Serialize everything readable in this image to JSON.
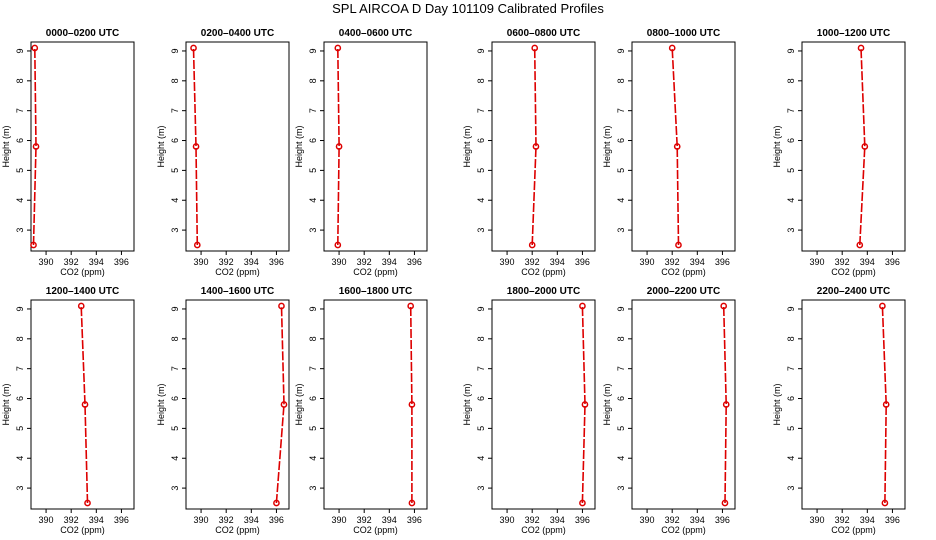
{
  "figure": {
    "title": "SPL AIRCOA D  Day 101109  Calibrated Profiles",
    "series_color": "#dd0000"
  },
  "chart_data": [
    {
      "type": "line",
      "title": "0000–0200 UTC",
      "xlabel": "CO2 (ppm)",
      "ylabel": "Height (m)",
      "xlim": [
        388.8,
        397.0
      ],
      "ylim": [
        2.3,
        9.3
      ],
      "xticks": [
        390,
        392,
        394,
        396
      ],
      "yticks": [
        3,
        4,
        5,
        6,
        7,
        8,
        9
      ],
      "x": [
        389.0,
        389.2,
        389.1
      ],
      "y": [
        2.5,
        5.8,
        9.1
      ]
    },
    {
      "type": "line",
      "title": "0200–0400 UTC",
      "xlabel": "CO2 (ppm)",
      "ylabel": "Height (m)",
      "xlim": [
        388.8,
        397.0
      ],
      "ylim": [
        2.3,
        9.3
      ],
      "xticks": [
        390,
        392,
        394,
        396
      ],
      "yticks": [
        3,
        4,
        5,
        6,
        7,
        8,
        9
      ],
      "x": [
        389.7,
        389.6,
        389.4
      ],
      "y": [
        2.5,
        5.8,
        9.1
      ]
    },
    {
      "type": "line",
      "title": "0400–0600 UTC",
      "xlabel": "CO2 (ppm)",
      "ylabel": "Height (m)",
      "xlim": [
        388.8,
        397.0
      ],
      "ylim": [
        2.3,
        9.3
      ],
      "xticks": [
        390,
        392,
        394,
        396
      ],
      "yticks": [
        3,
        4,
        5,
        6,
        7,
        8,
        9
      ],
      "x": [
        389.9,
        390.0,
        389.9
      ],
      "y": [
        2.5,
        5.8,
        9.1
      ]
    },
    {
      "type": "line",
      "title": "0600–0800 UTC",
      "xlabel": "CO2 (ppm)",
      "ylabel": "Height (m)",
      "xlim": [
        388.8,
        397.0
      ],
      "ylim": [
        2.3,
        9.3
      ],
      "xticks": [
        390,
        392,
        394,
        396
      ],
      "yticks": [
        3,
        4,
        5,
        6,
        7,
        8,
        9
      ],
      "x": [
        392.0,
        392.3,
        392.2
      ],
      "y": [
        2.5,
        5.8,
        9.1
      ]
    },
    {
      "type": "line",
      "title": "0800–1000 UTC",
      "xlabel": "CO2 (ppm)",
      "ylabel": "Height (m)",
      "xlim": [
        388.8,
        397.0
      ],
      "ylim": [
        2.3,
        9.3
      ],
      "xticks": [
        390,
        392,
        394,
        396
      ],
      "yticks": [
        3,
        4,
        5,
        6,
        7,
        8,
        9
      ],
      "x": [
        392.5,
        392.4,
        392.0
      ],
      "y": [
        2.5,
        5.8,
        9.1
      ]
    },
    {
      "type": "line",
      "title": "1000–1200 UTC",
      "xlabel": "CO2 (ppm)",
      "ylabel": "Height (m)",
      "xlim": [
        388.8,
        397.0
      ],
      "ylim": [
        2.3,
        9.3
      ],
      "xticks": [
        390,
        392,
        394,
        396
      ],
      "yticks": [
        3,
        4,
        5,
        6,
        7,
        8,
        9
      ],
      "x": [
        393.4,
        393.8,
        393.5
      ],
      "y": [
        2.5,
        5.8,
        9.1
      ]
    },
    {
      "type": "line",
      "title": "1200–1400 UTC",
      "xlabel": "CO2 (ppm)",
      "ylabel": "Height (m)",
      "xlim": [
        388.8,
        397.0
      ],
      "ylim": [
        2.3,
        9.3
      ],
      "xticks": [
        390,
        392,
        394,
        396
      ],
      "yticks": [
        3,
        4,
        5,
        6,
        7,
        8,
        9
      ],
      "x": [
        393.3,
        393.1,
        392.8
      ],
      "y": [
        2.5,
        5.8,
        9.1
      ]
    },
    {
      "type": "line",
      "title": "1400–1600 UTC",
      "xlabel": "CO2 (ppm)",
      "ylabel": "Height (m)",
      "xlim": [
        388.8,
        397.0
      ],
      "ylim": [
        2.3,
        9.3
      ],
      "xticks": [
        390,
        392,
        394,
        396
      ],
      "yticks": [
        3,
        4,
        5,
        6,
        7,
        8,
        9
      ],
      "x": [
        396.0,
        396.6,
        396.4
      ],
      "y": [
        2.5,
        5.8,
        9.1
      ]
    },
    {
      "type": "line",
      "title": "1600–1800 UTC",
      "xlabel": "CO2 (ppm)",
      "ylabel": "Height (m)",
      "xlim": [
        388.8,
        397.0
      ],
      "ylim": [
        2.3,
        9.3
      ],
      "xticks": [
        390,
        392,
        394,
        396
      ],
      "yticks": [
        3,
        4,
        5,
        6,
        7,
        8,
        9
      ],
      "x": [
        395.8,
        395.8,
        395.7
      ],
      "y": [
        2.5,
        5.8,
        9.1
      ]
    },
    {
      "type": "line",
      "title": "1800–2000 UTC",
      "xlabel": "CO2 (ppm)",
      "ylabel": "Height (m)",
      "xlim": [
        388.8,
        397.0
      ],
      "ylim": [
        2.3,
        9.3
      ],
      "xticks": [
        390,
        392,
        394,
        396
      ],
      "yticks": [
        3,
        4,
        5,
        6,
        7,
        8,
        9
      ],
      "x": [
        396.0,
        396.2,
        396.0
      ],
      "y": [
        2.5,
        5.8,
        9.1
      ]
    },
    {
      "type": "line",
      "title": "2000–2200 UTC",
      "xlabel": "CO2 (ppm)",
      "ylabel": "Height (m)",
      "xlim": [
        388.8,
        397.0
      ],
      "ylim": [
        2.3,
        9.3
      ],
      "xticks": [
        390,
        392,
        394,
        396
      ],
      "yticks": [
        3,
        4,
        5,
        6,
        7,
        8,
        9
      ],
      "x": [
        396.2,
        396.3,
        396.1
      ],
      "y": [
        2.5,
        5.8,
        9.1
      ]
    },
    {
      "type": "line",
      "title": "2200–2400 UTC",
      "xlabel": "CO2 (ppm)",
      "ylabel": "Height (m)",
      "xlim": [
        388.8,
        397.0
      ],
      "ylim": [
        2.3,
        9.3
      ],
      "xticks": [
        390,
        392,
        394,
        396
      ],
      "yticks": [
        3,
        4,
        5,
        6,
        7,
        8,
        9
      ],
      "x": [
        395.4,
        395.5,
        395.2
      ],
      "y": [
        2.5,
        5.8,
        9.1
      ]
    }
  ]
}
